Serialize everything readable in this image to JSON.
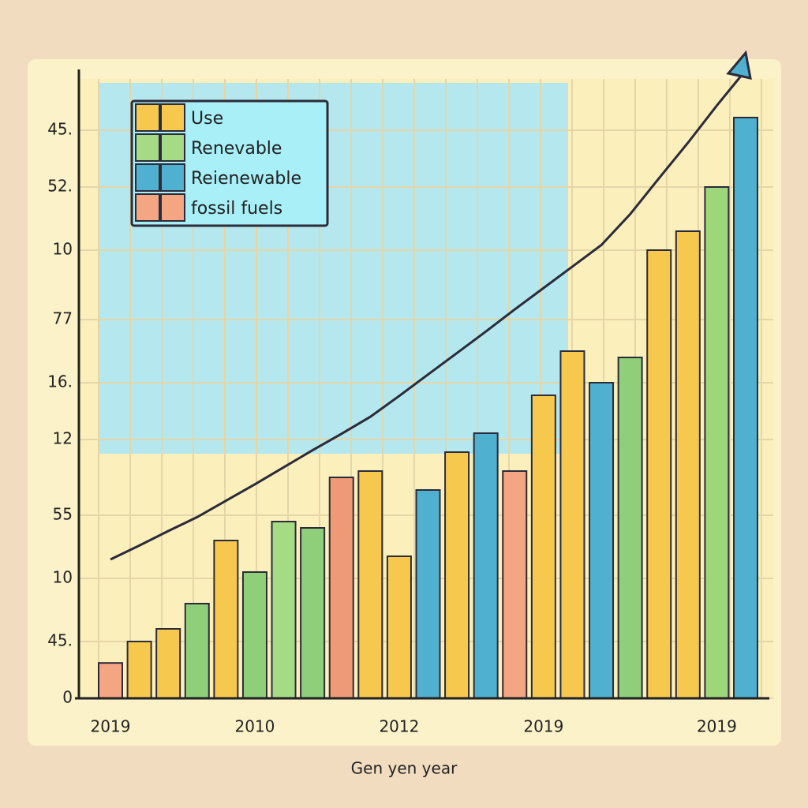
{
  "chart_data": {
    "type": "bar",
    "x_label": "Gen yen year",
    "categories": [
      "2019",
      null,
      null,
      null,
      null,
      "2010",
      null,
      null,
      null,
      null,
      "2012",
      null,
      null,
      null,
      null,
      "2019",
      null,
      null,
      null,
      null,
      null,
      "2019",
      null
    ],
    "values": [
      0.56,
      0.9,
      1.1,
      1.5,
      2.5,
      2.0,
      2.8,
      2.7,
      3.5,
      3.6,
      2.25,
      3.3,
      3.9,
      4.2,
      3.6,
      4.8,
      5.5,
      5.0,
      5.4,
      7.1,
      7.4,
      8.1,
      9.2
    ],
    "colors": [
      "#f4a582",
      "#f6c94e",
      "#f6c94e",
      "#8fcf7a",
      "#f6c94e",
      "#8fcf7a",
      "#a6db86",
      "#8fcf7a",
      "#ef9a76",
      "#f6c94e",
      "#f6c94e",
      "#4fb0cf",
      "#f6c94e",
      "#4fb0cf",
      "#f4a582",
      "#f6c94e",
      "#f6c94e",
      "#4fb0cf",
      "#8fcf7a",
      "#f6c94e",
      "#f6c94e",
      "#9dd77a",
      "#4fb0cf"
    ],
    "line": {
      "color": "#2b2b3a",
      "values": [
        2.2,
        2.42,
        2.65,
        2.87,
        3.13,
        3.39,
        3.66,
        3.93,
        4.19,
        4.46,
        4.79,
        5.13,
        5.47,
        5.81,
        6.16,
        6.5,
        6.84,
        7.18,
        7.67,
        8.24,
        8.8,
        9.39,
        9.95
      ]
    },
    "legend": [
      {
        "name": "Use",
        "color": "#f6c94e"
      },
      {
        "name": "Renevable",
        "color": "#a6db86"
      },
      {
        "name": "Reienewable",
        "color": "#4fb0cf"
      },
      {
        "name": "fossil fuels",
        "color": "#f4a582"
      }
    ],
    "ylim": [
      0,
      10
    ],
    "yticks": [
      0,
      {
        "value": 0.9,
        "label": "45."
      },
      {
        "value": 1.9,
        "label": "10"
      },
      {
        "value": 2.9,
        "label": "55"
      },
      {
        "value": 4.1,
        "label": "12"
      },
      {
        "value": 5.0,
        "label": "16."
      },
      {
        "value": 6.0,
        "label": "77"
      },
      {
        "value": 7.1,
        "label": "10"
      },
      {
        "value": 8.1,
        "label": "52."
      },
      {
        "value": 9.0,
        "label": "45."
      }
    ],
    "grid": true
  }
}
